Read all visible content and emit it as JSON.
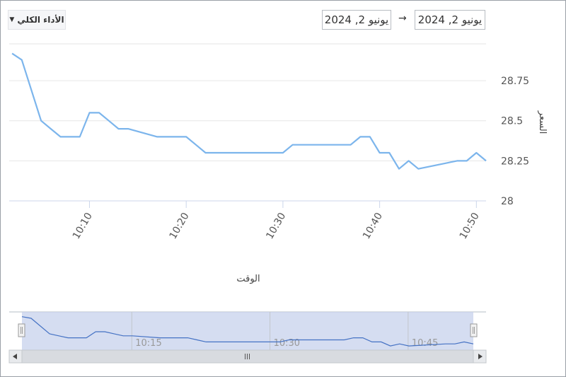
{
  "toolbar": {
    "performance_label": "الأداء الكلي",
    "date_from": "يونيو 2, 2024",
    "date_to": "يونيو 2, 2024",
    "arrow": "→"
  },
  "chart_data": {
    "type": "line",
    "title": "",
    "xlabel": "الوقت",
    "ylabel": "السعر",
    "x_ticks": [
      "10:10",
      "10:20",
      "10:30",
      "10:40",
      "10:50"
    ],
    "y_ticks": [
      "28",
      "28.25",
      "28.5",
      "28.75"
    ],
    "ylim": [
      28,
      28.98
    ],
    "color": "#7cb5ec",
    "grid": "horizontal",
    "navigator_ticks": [
      "10:15",
      "10:30",
      "10:45"
    ],
    "series": [
      {
        "name": "",
        "x": [
          "10:02",
          "10:03",
          "10:05",
          "10:06",
          "10:07",
          "10:08",
          "10:09",
          "10:10",
          "10:11",
          "10:12",
          "10:13",
          "10:14",
          "10:17",
          "10:19",
          "10:20",
          "10:21",
          "10:22",
          "10:29",
          "10:30",
          "10:31",
          "10:37",
          "10:38",
          "10:39",
          "10:40",
          "10:41",
          "10:42",
          "10:43",
          "10:44",
          "10:48",
          "10:49",
          "10:50",
          "10:51"
        ],
        "y": [
          28.92,
          28.88,
          28.5,
          28.45,
          28.4,
          28.4,
          28.4,
          28.55,
          28.55,
          28.5,
          28.45,
          28.45,
          28.4,
          28.4,
          28.4,
          28.35,
          28.3,
          28.3,
          28.3,
          28.35,
          28.35,
          28.4,
          28.4,
          28.3,
          28.3,
          28.2,
          28.25,
          28.2,
          28.25,
          28.25,
          28.3,
          28.25
        ]
      }
    ]
  }
}
